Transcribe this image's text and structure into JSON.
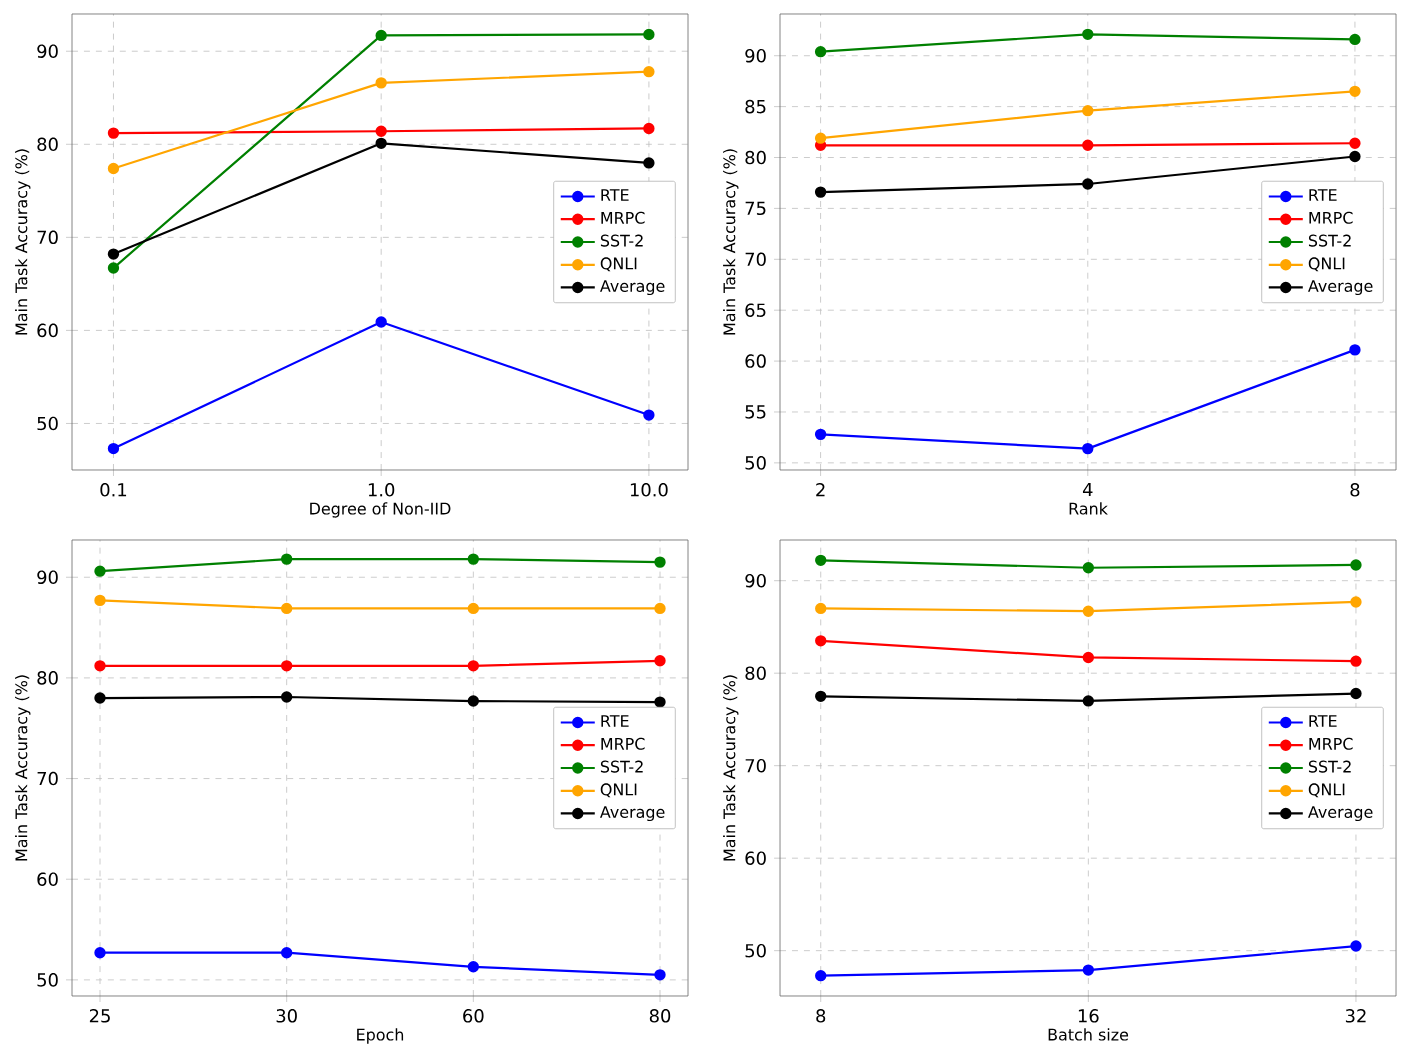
{
  "chart_data": [
    {
      "type": "line",
      "xlabel": "Degree of Non-IID",
      "ylabel": "Main Task Accuracy (%)",
      "x": [
        0.1,
        1,
        10
      ],
      "log": "x",
      "xlim": [
        0.07,
        14
      ],
      "xticks": [
        0.1,
        {
          "value": 1,
          "label": "1.0"
        },
        {
          "value": 10,
          "label": "10.0"
        }
      ],
      "ylim": [
        45,
        94
      ],
      "yticks": [
        50,
        60,
        70,
        80,
        90
      ],
      "grid": true,
      "legend": "right",
      "marker": "circle",
      "series": [
        {
          "name": "RTE",
          "color": "#0000ff",
          "values": [
            47.3,
            60.9,
            50.9
          ]
        },
        {
          "name": "MRPC",
          "color": "#ff0000",
          "values": [
            81.2,
            81.4,
            81.7
          ]
        },
        {
          "name": "SST-2",
          "color": "#008000",
          "values": [
            66.7,
            91.7,
            91.8
          ]
        },
        {
          "name": "QNLI",
          "color": "#ffa500",
          "values": [
            77.4,
            86.6,
            87.8
          ]
        },
        {
          "name": "Average",
          "color": "#000000",
          "values": [
            68.2,
            80.1,
            78.0
          ]
        }
      ]
    },
    {
      "type": "line",
      "xlabel": "Rank",
      "ylabel": "Main Task Accuracy (%)",
      "x": [
        2,
        4,
        8
      ],
      "log": "x",
      "xlim": [
        1.8,
        8.9
      ],
      "xticks": [
        2,
        4,
        8
      ],
      "ylim": [
        49.3,
        94.1
      ],
      "yticks": [
        50,
        55,
        60,
        65,
        70,
        75,
        80,
        85,
        90
      ],
      "grid": true,
      "legend": "right",
      "marker": "circle",
      "series": [
        {
          "name": "RTE",
          "color": "#0000ff",
          "values": [
            52.8,
            51.4,
            61.1
          ]
        },
        {
          "name": "MRPC",
          "color": "#ff0000",
          "values": [
            81.2,
            81.2,
            81.4
          ]
        },
        {
          "name": "SST-2",
          "color": "#008000",
          "values": [
            90.4,
            92.1,
            91.6
          ]
        },
        {
          "name": "QNLI",
          "color": "#ffa500",
          "values": [
            81.9,
            84.6,
            86.5
          ]
        },
        {
          "name": "Average",
          "color": "#000000",
          "values": [
            76.6,
            77.4,
            80.1
          ]
        }
      ]
    },
    {
      "type": "line",
      "xlabel": "Epoch",
      "ylabel": "Main Task Accuracy (%)",
      "categories": [
        "25",
        "30",
        "60",
        "80"
      ],
      "ylim": [
        48.4,
        93.7
      ],
      "yticks": [
        50,
        60,
        70,
        80,
        90
      ],
      "grid": true,
      "legend": "right",
      "marker": "circle",
      "series": [
        {
          "name": "RTE",
          "color": "#0000ff",
          "values": [
            52.7,
            52.7,
            51.3,
            50.5
          ]
        },
        {
          "name": "MRPC",
          "color": "#ff0000",
          "values": [
            81.2,
            81.2,
            81.2,
            81.7
          ]
        },
        {
          "name": "SST-2",
          "color": "#008000",
          "values": [
            90.6,
            91.8,
            91.8,
            91.5
          ]
        },
        {
          "name": "QNLI",
          "color": "#ffa500",
          "values": [
            87.7,
            86.9,
            86.9,
            86.9
          ]
        },
        {
          "name": "Average",
          "color": "#000000",
          "values": [
            78.0,
            78.1,
            77.7,
            77.6
          ]
        }
      ]
    },
    {
      "type": "line",
      "xlabel": "Batch size",
      "ylabel": "Main Task Accuracy (%)",
      "x": [
        8,
        16,
        32
      ],
      "log": "x",
      "xlim": [
        7.2,
        35.5
      ],
      "xticks": [
        8,
        16,
        32
      ],
      "ylim": [
        45.1,
        94.4
      ],
      "yticks": [
        50,
        60,
        70,
        80,
        90
      ],
      "grid": true,
      "legend": "right",
      "marker": "circle",
      "series": [
        {
          "name": "RTE",
          "color": "#0000ff",
          "values": [
            47.3,
            47.9,
            50.5
          ]
        },
        {
          "name": "MRPC",
          "color": "#ff0000",
          "values": [
            83.5,
            81.7,
            81.3
          ]
        },
        {
          "name": "SST-2",
          "color": "#008000",
          "values": [
            92.2,
            91.4,
            91.7
          ]
        },
        {
          "name": "QNLI",
          "color": "#ffa500",
          "values": [
            87.0,
            86.7,
            87.7
          ]
        },
        {
          "name": "Average",
          "color": "#000000",
          "values": [
            77.5,
            77.0,
            77.8
          ]
        }
      ]
    }
  ]
}
